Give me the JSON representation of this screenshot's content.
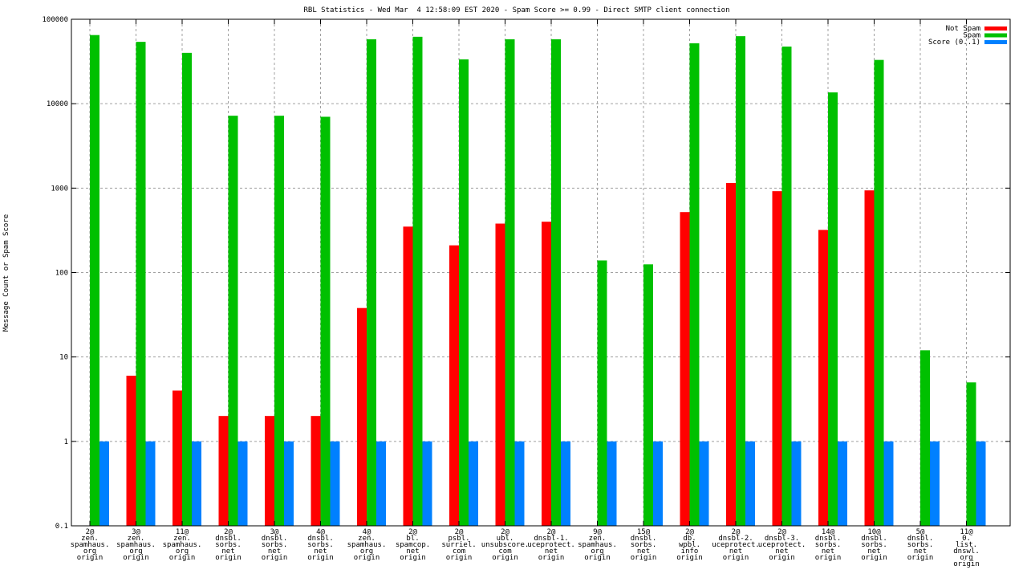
{
  "chart_data": {
    "type": "bar",
    "title": "RBL Statistics - Wed Mar  4 12:58:09 EST 2020 - Spam Score >= 0.99 - Direct SMTP client connection",
    "xlabel": "",
    "ylabel": "Message Count or Spam Score",
    "yscale": "log",
    "ylim": [
      0.1,
      100000
    ],
    "yticks": [
      "0.1",
      "1",
      "10",
      "100",
      "1000",
      "10000",
      "100000"
    ],
    "yticks_values": [
      0.1,
      1,
      10,
      100,
      1000,
      10000,
      100000
    ],
    "grid": true,
    "legend_position": "top-right",
    "categories": [
      [
        "2@",
        "zen.",
        "spamhaus.",
        "org",
        "origin"
      ],
      [
        "3@",
        "zen.",
        "spamhaus.",
        "org",
        "origin"
      ],
      [
        "11@",
        "zen.",
        "spamhaus.",
        "org",
        "origin"
      ],
      [
        "2@",
        "dnsbl.",
        "sorbs.",
        "net",
        "origin"
      ],
      [
        "3@",
        "dnsbl.",
        "sorbs.",
        "net",
        "origin"
      ],
      [
        "4@",
        "dnsbl.",
        "sorbs.",
        "net",
        "origin"
      ],
      [
        "4@",
        "zen.",
        "spamhaus.",
        "org",
        "origin"
      ],
      [
        "2@",
        "bl.",
        "spamcop.",
        "net",
        "origin"
      ],
      [
        "2@",
        "psbl.",
        "surriel.",
        "com",
        "origin"
      ],
      [
        "2@",
        "ubl.",
        "unsubscore.",
        "com",
        "origin"
      ],
      [
        "2@",
        "dnsbl-1.",
        "uceprotect.",
        "net",
        "origin"
      ],
      [
        "9@",
        "zen.",
        "spamhaus.",
        "org",
        "origin"
      ],
      [
        "15@",
        "dnsbl.",
        "sorbs.",
        "net",
        "origin"
      ],
      [
        "2@",
        "db.",
        "wpbl.",
        "info",
        "origin"
      ],
      [
        "2@",
        "dnsbl-2.",
        "uceprotect.",
        "net",
        "origin"
      ],
      [
        "2@",
        "dnsbl-3.",
        "uceprotect.",
        "net",
        "origin"
      ],
      [
        "14@",
        "dnsbl.",
        "sorbs.",
        "net",
        "origin"
      ],
      [
        "10@",
        "dnsbl.",
        "sorbs.",
        "net",
        "origin"
      ],
      [
        "5@",
        "dnsbl.",
        "sorbs.",
        "net",
        "origin"
      ],
      [
        "11@",
        "0.",
        "list.",
        "dnswl.",
        "org",
        "origin"
      ]
    ],
    "series": [
      {
        "name": "Not Spam",
        "color": "#ff0000",
        "values": [
          null,
          6,
          4,
          2,
          2,
          2,
          38,
          350,
          210,
          380,
          400,
          null,
          null,
          520,
          1150,
          920,
          320,
          940,
          null,
          null
        ]
      },
      {
        "name": "Spam",
        "color": "#00c000",
        "values": [
          65000,
          54000,
          40000,
          7200,
          7200,
          7000,
          58000,
          62000,
          33500,
          58000,
          58000,
          139,
          125,
          52000,
          63000,
          47500,
          13600,
          33000,
          12,
          5
        ]
      },
      {
        "name": "Score (0..1)",
        "color": "#0080ff",
        "values": [
          1,
          1,
          1,
          1,
          1,
          1,
          1,
          1,
          1,
          1,
          1,
          1,
          1,
          1,
          1,
          1,
          1,
          1,
          1,
          1
        ]
      }
    ]
  }
}
